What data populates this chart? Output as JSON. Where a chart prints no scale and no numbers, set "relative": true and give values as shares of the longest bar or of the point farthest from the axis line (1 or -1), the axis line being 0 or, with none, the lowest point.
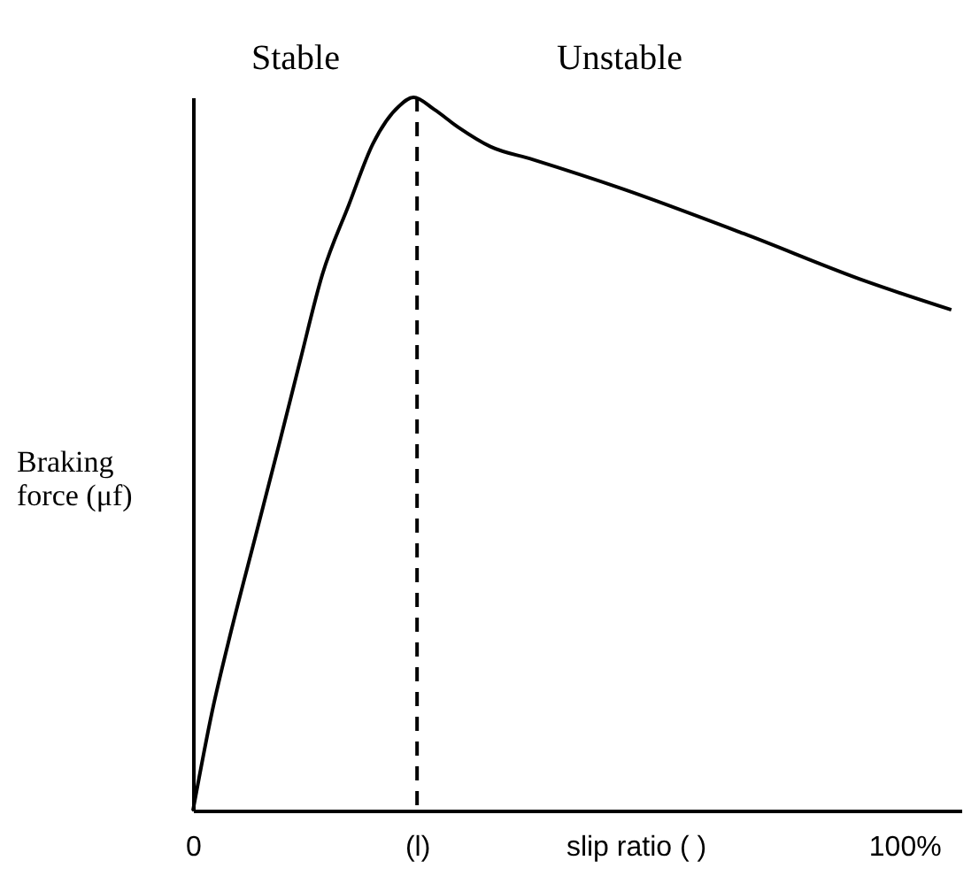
{
  "chart_data": {
    "type": "line",
    "relative": true,
    "xlabel": "slip ratio (   )",
    "ylabel": "Braking force (μf)",
    "annotations": [
      "Stable",
      "Unstable"
    ],
    "x": [
      0,
      2.7,
      5.4,
      8.8,
      12.3,
      15.0,
      18.2,
      21.9,
      25.3,
      29.0,
      31.0,
      33.9,
      37.3,
      41.8,
      47.7,
      60.0,
      77.4,
      94.6,
      106.6
    ],
    "series": [
      {
        "color": "#000000",
        "values": [
          0,
          0.139,
          0.253,
          0.385,
          0.521,
          0.628,
          0.752,
          0.849,
          0.935,
          0.988,
          1,
          0.983,
          0.958,
          0.931,
          0.913,
          0.873,
          0.809,
          0.742,
          0.702
        ]
      }
    ],
    "xlim": [
      0,
      108
    ],
    "xticks": [
      0,
      {
        "value": 31.5,
        "label": "(l)"
      },
      {
        "value": 100,
        "label": "100%"
      }
    ],
    "ref_lines": [
      {
        "axis": "x",
        "value": 31.5,
        "line_style": "dashed",
        "color": "#000000"
      }
    ],
    "grid": false,
    "marker": "none",
    "line_style": "solid"
  }
}
